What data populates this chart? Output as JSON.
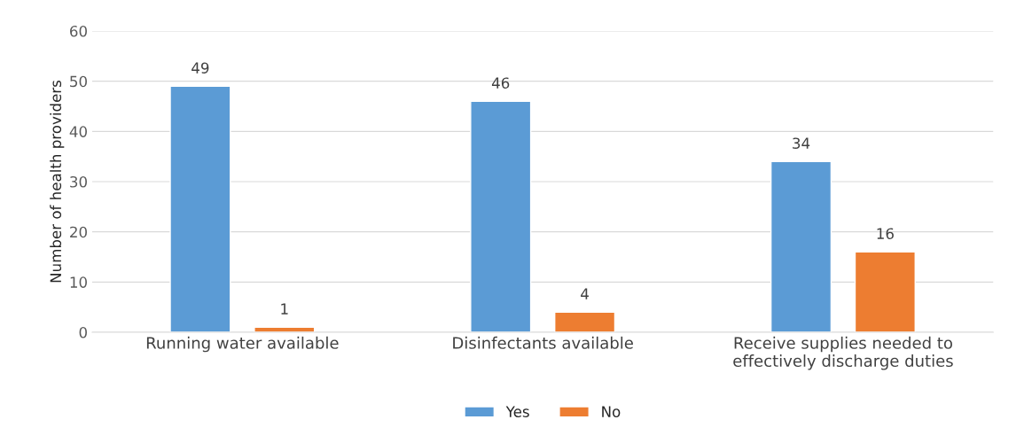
{
  "chart_data": {
    "type": "bar",
    "ylabel": "Number of health providers",
    "categories": [
      "Running water available",
      "Disinfectants available",
      "Receive supplies needed to\neffectively discharge duties"
    ],
    "series": [
      {
        "name": "Yes",
        "color": "#5b9bd5",
        "values": [
          49,
          46,
          34
        ]
      },
      {
        "name": "No",
        "color": "#ed7d31",
        "values": [
          1,
          4,
          16
        ]
      }
    ],
    "ylim": [
      0,
      60
    ],
    "yticks": [
      0,
      10,
      20,
      30,
      40,
      50,
      60
    ],
    "grid": "y",
    "legend": "bottom",
    "data_labels": true
  }
}
